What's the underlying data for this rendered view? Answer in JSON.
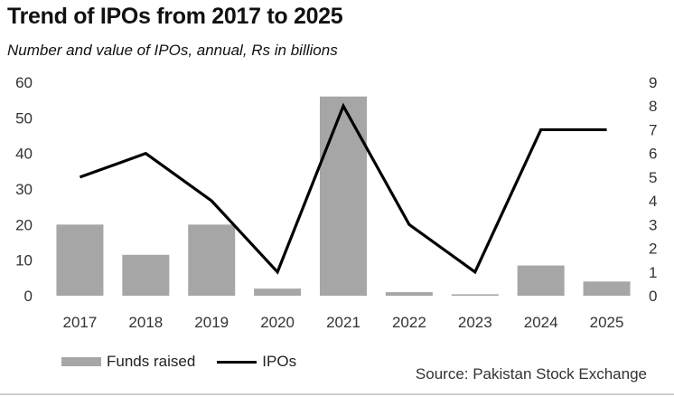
{
  "chart_data": {
    "type": "bar+line",
    "title": "Trend of IPOs from 2017 to 2025",
    "subtitle": "Number and value of IPOs, annual, Rs in billions",
    "categories": [
      "2017",
      "2018",
      "2019",
      "2020",
      "2021",
      "2022",
      "2023",
      "2024",
      "2025"
    ],
    "series": [
      {
        "name": "Funds raised",
        "type": "bar",
        "axis": "left",
        "color": "#a6a6a6",
        "values": [
          20,
          11.5,
          20,
          2,
          56,
          1,
          0.4,
          8.5,
          4
        ]
      },
      {
        "name": "IPOs",
        "type": "line",
        "axis": "right",
        "color": "#000000",
        "values": [
          5,
          6,
          4,
          1,
          8,
          3,
          1,
          7,
          7
        ]
      }
    ],
    "left_axis": {
      "ylim": [
        0,
        60
      ],
      "ticks": [
        "0",
        "10",
        "20",
        "30",
        "40",
        "50",
        "60"
      ]
    },
    "right_axis": {
      "ylim": [
        0,
        9
      ],
      "ticks": [
        "0",
        "1",
        "2",
        "3",
        "4",
        "5",
        "6",
        "7",
        "8",
        "9"
      ]
    },
    "grid": false,
    "legend": "bottom-left",
    "source": "Source: Pakistan Stock Exchange"
  }
}
